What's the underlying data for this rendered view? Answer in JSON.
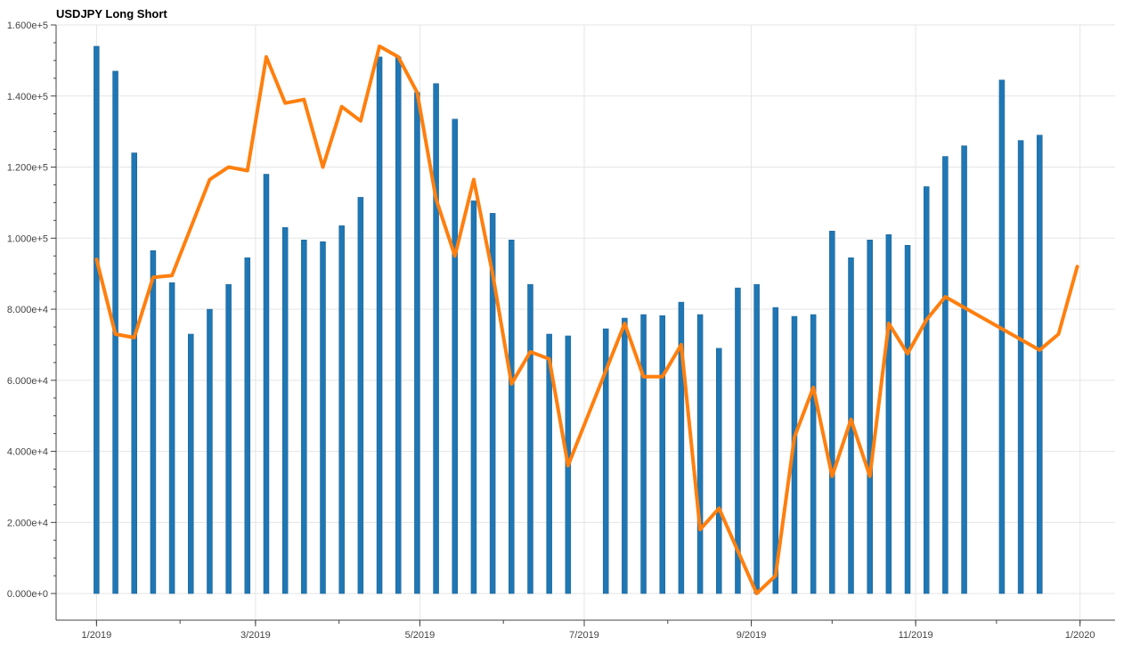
{
  "chart_data": {
    "type": "bar+line",
    "title": "USDJPY Long Short",
    "xlabel": "",
    "ylabel": "",
    "ylim": [
      -7500,
      160000
    ],
    "y_ticks": [
      0,
      20000,
      40000,
      60000,
      80000,
      100000,
      120000,
      140000,
      160000
    ],
    "y_tick_labels": [
      "0.000e+0",
      "2.000e+4",
      "4.000e+4",
      "6.000e+4",
      "8.000e+4",
      "1.000e+5",
      "1.200e+5",
      "1.400e+5",
      "1.600e+5"
    ],
    "xlim": [
      "2018-12-17",
      "2020-01-14"
    ],
    "x_ticks": [
      "2019-01-01",
      "2019-03-01",
      "2019-05-01",
      "2019-07-01",
      "2019-09-01",
      "2019-11-01",
      "2020-01-01"
    ],
    "x_tick_labels": [
      "1/2019",
      "3/2019",
      "5/2019",
      "7/2019",
      "9/2019",
      "11/2019",
      "1/2020"
    ],
    "grid": true,
    "colors": {
      "bars": "#1f77b4",
      "line": "#ff7f0e",
      "grid": "#e5e5e5",
      "axis": "#444444"
    },
    "series": [
      {
        "type": "bar",
        "dates": [
          "2019-01-01",
          "2019-01-08",
          "2019-01-15",
          "2019-01-22",
          "2019-01-29",
          "2019-02-05",
          "2019-02-12",
          "2019-02-19",
          "2019-02-26",
          "2019-03-05",
          "2019-03-12",
          "2019-03-19",
          "2019-03-26",
          "2019-04-02",
          "2019-04-09",
          "2019-04-16",
          "2019-04-23",
          "2019-04-30",
          "2019-05-07",
          "2019-05-14",
          "2019-05-21",
          "2019-05-28",
          "2019-06-04",
          "2019-06-11",
          "2019-06-18",
          "2019-06-25",
          "2019-07-02",
          "2019-07-09",
          "2019-07-16",
          "2019-07-23",
          "2019-07-30",
          "2019-08-06",
          "2019-08-13",
          "2019-08-20",
          "2019-08-27",
          "2019-09-03",
          "2019-09-10",
          "2019-09-17",
          "2019-09-24",
          "2019-10-01",
          "2019-10-08",
          "2019-10-15",
          "2019-10-22",
          "2019-10-29",
          "2019-11-05",
          "2019-11-12",
          "2019-11-19",
          "2019-11-26",
          "2019-12-03",
          "2019-12-10",
          "2019-12-17",
          "2019-12-24"
        ],
        "values": [
          154000,
          147000,
          124000,
          96500,
          87500,
          73000,
          80000,
          87000,
          94500,
          118000,
          103000,
          99500,
          99000,
          103500,
          111500,
          151000,
          151000,
          141000,
          143500,
          133500,
          110500,
          107000,
          99500,
          87000,
          73000,
          72500,
          null,
          74500,
          77500,
          78500,
          78200,
          82000,
          78500,
          69000,
          86000,
          87000,
          80500,
          78000,
          78500,
          102000,
          94500,
          99500,
          101000,
          98000,
          114500,
          123000,
          126000,
          null,
          144500,
          127500,
          129000,
          null
        ],
        "note_missing": "null = no bar visible"
      },
      {
        "type": "line",
        "dates": [
          "2019-01-01",
          "2019-01-08",
          "2019-01-15",
          "2019-01-22",
          "2019-01-29",
          "2019-02-05",
          "2019-02-12",
          "2019-02-19",
          "2019-02-26",
          "2019-03-05",
          "2019-03-12",
          "2019-03-19",
          "2019-03-26",
          "2019-04-02",
          "2019-04-09",
          "2019-04-16",
          "2019-04-23",
          "2019-04-30",
          "2019-05-07",
          "2019-05-14",
          "2019-05-21",
          "2019-05-28",
          "2019-06-04",
          "2019-06-11",
          "2019-06-18",
          "2019-06-25",
          "2019-07-16",
          "2019-07-23",
          "2019-07-30",
          "2019-08-06",
          "2019-08-13",
          "2019-08-20",
          "2019-08-27",
          "2019-09-03",
          "2019-09-10",
          "2019-09-17",
          "2019-09-24",
          "2019-10-01",
          "2019-10-08",
          "2019-10-15",
          "2019-10-22",
          "2019-10-29",
          "2019-11-05",
          "2019-11-12",
          "2019-11-19",
          "2019-12-17",
          "2019-12-24",
          "2019-12-31"
        ],
        "values": [
          94000,
          73000,
          72000,
          89000,
          89500,
          103000,
          116500,
          120000,
          119000,
          151000,
          138000,
          139000,
          120000,
          137000,
          133000,
          154000,
          151000,
          141000,
          111000,
          95000,
          116500,
          90000,
          59000,
          68000,
          66000,
          36000,
          76000,
          61000,
          61000,
          70000,
          18000,
          24000,
          12000,
          0,
          5000,
          44000,
          58000,
          33000,
          49000,
          33000,
          76000,
          67500,
          77000,
          83500,
          80500,
          68500,
          73000,
          92000
        ]
      }
    ]
  }
}
